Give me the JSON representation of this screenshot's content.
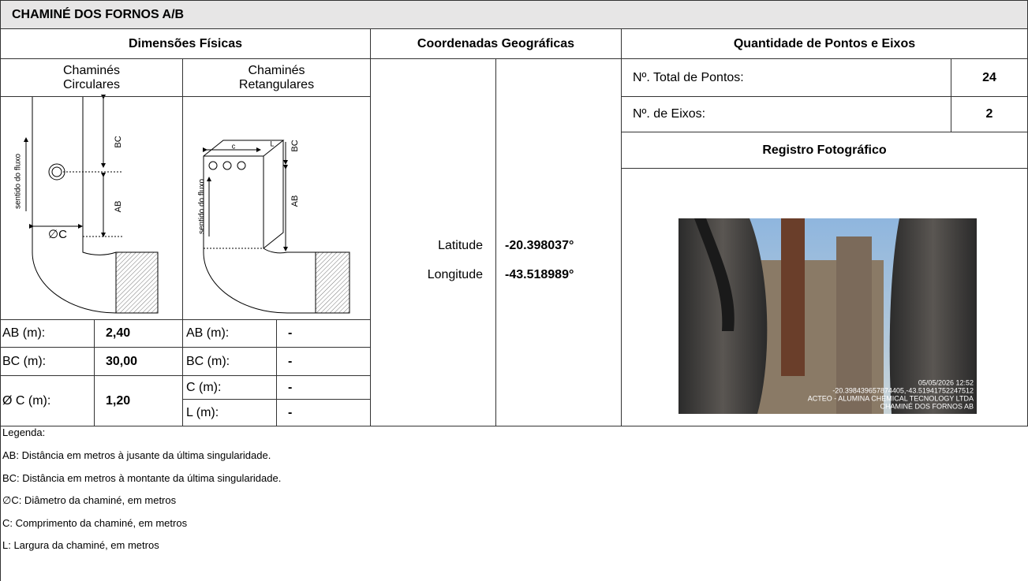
{
  "title": "CHAMINÉ DOS FORNOS A/B",
  "dimensions": {
    "header": "Dimensões Físicas",
    "circular": {
      "label": "Chaminés Circulares",
      "rows": [
        [
          "AB (m):",
          "2,40"
        ],
        [
          "BC (m):",
          "30,00"
        ],
        [
          "Ø C (m):",
          "1,20"
        ]
      ],
      "diagram_labels": [
        "sentido do fluxo",
        "BC",
        "AB",
        "∅C"
      ]
    },
    "rectangular": {
      "label": "Chaminés Retangulares",
      "rows": [
        [
          "AB (m):",
          "-"
        ],
        [
          "BC (m):",
          "-"
        ],
        [
          "C (m):",
          "-"
        ],
        [
          "L (m):",
          "-"
        ]
      ],
      "diagram_labels": [
        "c",
        "L",
        "BC",
        "AB",
        "sentido do fluxo"
      ]
    }
  },
  "coordinates": {
    "header": "Coordenadas Geográficas",
    "rows": [
      [
        "Latitude",
        "-20.398037°"
      ],
      [
        "Longitude",
        "-43.518989°"
      ]
    ]
  },
  "points": {
    "header": "Quantidade de Pontos e Eixos",
    "rows": [
      [
        "Nº. Total de Pontos:",
        24
      ],
      [
        "Nº. de Eixos:",
        2
      ]
    ],
    "photo_header": "Registro Fotográfico",
    "photo_caption": [
      "05/05/2026 12:52",
      "-20.398439657874405,-43.51941752247512",
      "ACTEO - ALUMINA CHEMICAL TECNOLOGY LTDA",
      "CHAMINÉ DOS FORNOS AB"
    ]
  },
  "legend": {
    "title": "Legenda:",
    "items": [
      "AB: Distância em metros à jusante da última singularidade.",
      "BC: Distância em metros à montante da última singularidade.",
      "∅C: Diâmetro da chaminé, em metros",
      "C: Comprimento da chaminé, em metros",
      "L: Largura da chaminé, em metros"
    ]
  }
}
